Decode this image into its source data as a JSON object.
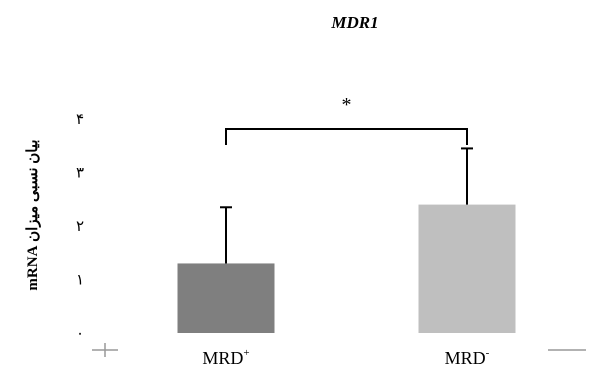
{
  "chart_data": {
    "type": "bar",
    "title": "MDR1",
    "ylabel": "بیان نسبی میزان mRNA",
    "xlabel": "",
    "ylim": [
      0,
      4
    ],
    "yticks": [
      "۰",
      "۱",
      "۲",
      "۳",
      "۴"
    ],
    "categories": [
      "MRD",
      "MRD"
    ],
    "category_superscripts": [
      "+",
      "-"
    ],
    "values": [
      1.3,
      2.4
    ],
    "error_upper": [
      2.35,
      3.45
    ],
    "bar_colors": [
      "#7f7f7f",
      "#bfbfbf"
    ],
    "significance": {
      "between": [
        0,
        1
      ],
      "label": "*",
      "level": 4.0
    },
    "grid": false,
    "legend": "none"
  }
}
